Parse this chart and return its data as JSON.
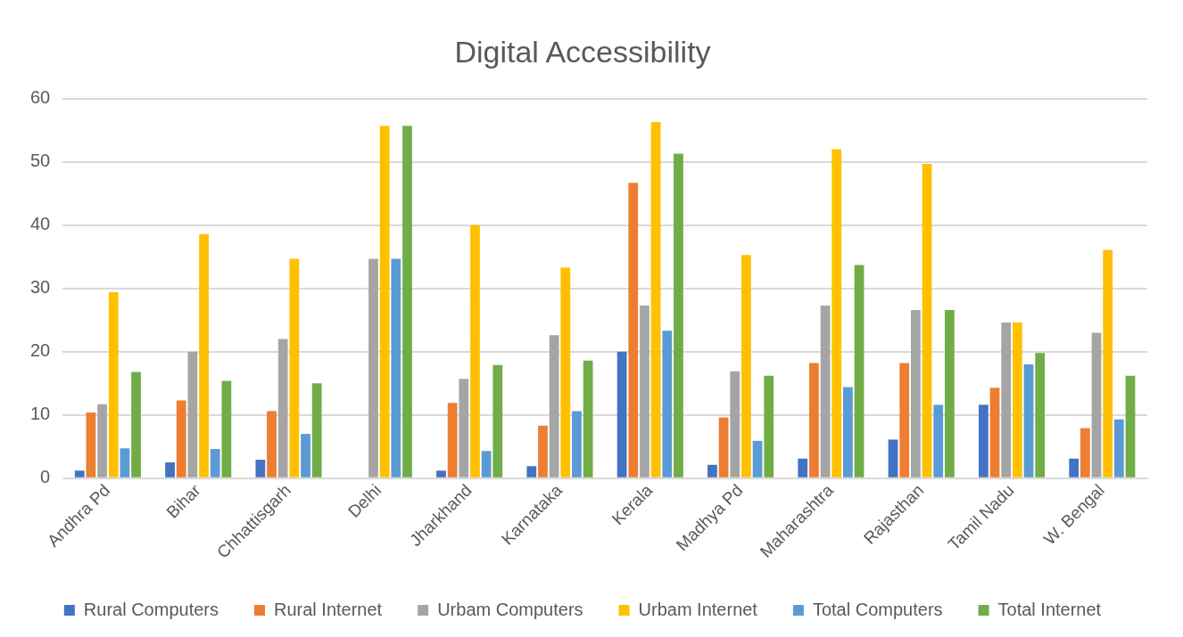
{
  "chart_data": {
    "type": "bar",
    "title": "Digital Accessibility",
    "categories": [
      "Andhra Pd",
      "Bihar",
      "Chhattisgarh",
      "Delhi",
      "Jharkhand",
      "Karnataka",
      "Kerala",
      "Madhya Pd",
      "Maharashtra",
      "Rajasthan",
      "Tamil Nadu",
      "W. Bengal"
    ],
    "series": [
      {
        "name": "Rural Computers",
        "color": "#4472c4",
        "values": [
          1.2,
          2.5,
          2.9,
          null,
          1.2,
          1.9,
          20,
          2.1,
          3.1,
          6.1,
          11.6,
          3.1
        ]
      },
      {
        "name": "Rural Internet",
        "color": "#ed7d31",
        "values": [
          10.4,
          12.3,
          10.6,
          null,
          11.9,
          8.3,
          46.7,
          9.6,
          18.2,
          18.2,
          14.3,
          7.9
        ]
      },
      {
        "name": "Urbam Computers",
        "color": "#a5a5a5",
        "values": [
          11.7,
          20,
          22,
          34.7,
          15.7,
          22.6,
          27.3,
          16.9,
          27.3,
          26.6,
          24.6,
          23
        ]
      },
      {
        "name": "Urbam Internet",
        "color": "#ffc000",
        "values": [
          29.4,
          38.6,
          34.7,
          55.7,
          40,
          33.3,
          56.3,
          35.3,
          52,
          49.7,
          24.6,
          36.1
        ]
      },
      {
        "name": "Total Computers",
        "color": "#5b9bd5",
        "values": [
          4.7,
          4.6,
          7,
          34.7,
          4.3,
          10.6,
          23.3,
          5.9,
          14.4,
          11.6,
          18,
          9.3
        ]
      },
      {
        "name": "Total Internet",
        "color": "#70ad47",
        "values": [
          16.8,
          15.4,
          15,
          55.7,
          17.9,
          18.6,
          51.3,
          16.2,
          33.7,
          26.6,
          19.8,
          16.2
        ]
      }
    ],
    "ylim": [
      0,
      60
    ],
    "yticks": [
      0,
      10,
      20,
      30,
      40,
      50,
      60
    ],
    "grid": "y",
    "legend": "bottom"
  }
}
